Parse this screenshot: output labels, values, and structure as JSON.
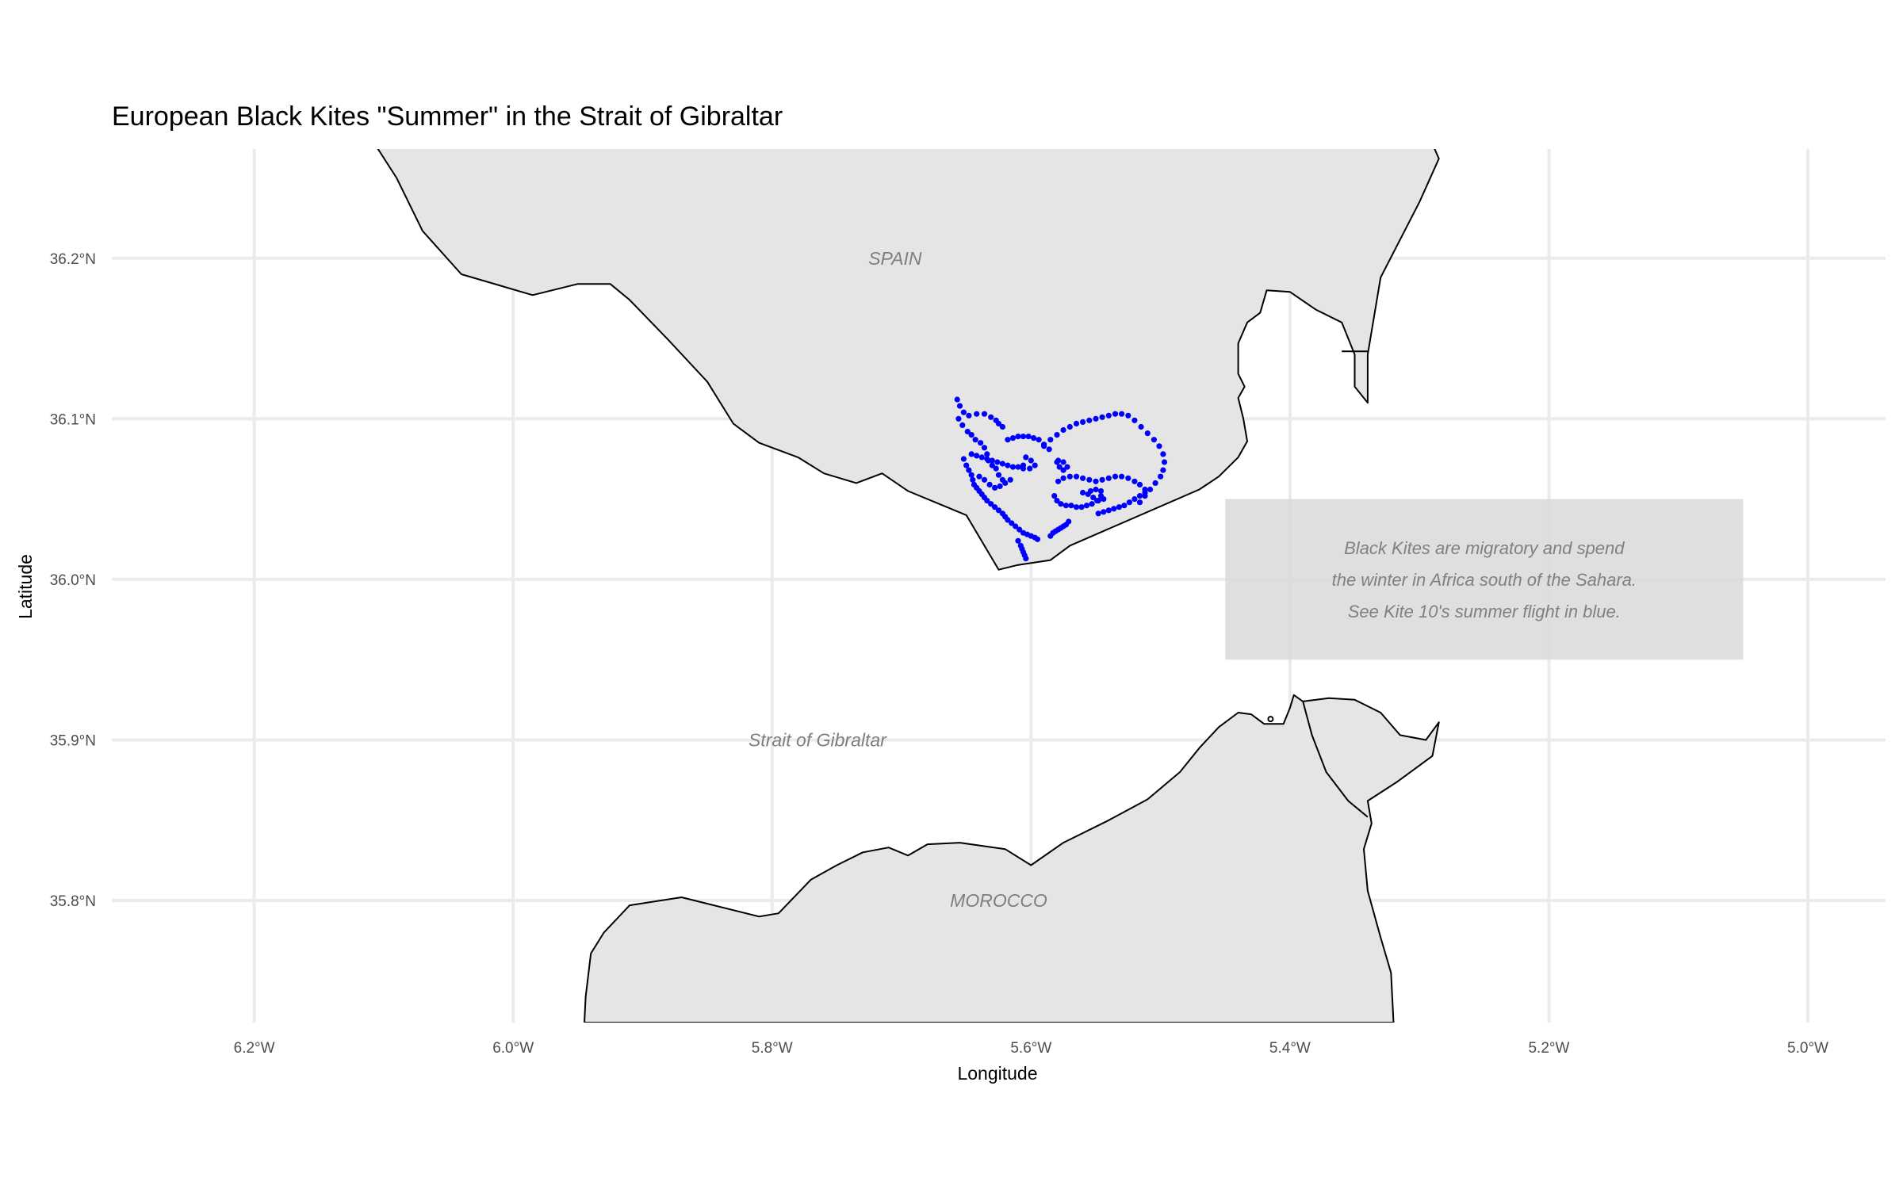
{
  "chart_data": {
    "type": "scatter",
    "title": "European Black Kites \"Summer\" in the Strait of Gibraltar",
    "xlabel": "Longitude",
    "ylabel": "Latitude",
    "xlim": [
      -6.31,
      -4.94
    ],
    "ylim": [
      35.724,
      36.268
    ],
    "grid": true,
    "x_ticks": [
      {
        "value": -6.2,
        "label": "6.2°W"
      },
      {
        "value": -6.0,
        "label": "6.0°W"
      },
      {
        "value": -5.8,
        "label": "5.8°W"
      },
      {
        "value": -5.6,
        "label": "5.6°W"
      },
      {
        "value": -5.4,
        "label": "5.4°W"
      },
      {
        "value": -5.2,
        "label": "5.2°W"
      },
      {
        "value": -5.0,
        "label": "5.0°W"
      }
    ],
    "y_ticks": [
      {
        "value": 36.2,
        "label": "36.2°N"
      },
      {
        "value": 36.1,
        "label": "36.1°N"
      },
      {
        "value": 36.0,
        "label": "36.0°N"
      },
      {
        "value": 35.9,
        "label": "35.9°N"
      },
      {
        "value": 35.8,
        "label": "35.8°N"
      }
    ],
    "place_labels": [
      {
        "text": "SPAIN",
        "lon": -5.705,
        "lat": 36.2
      },
      {
        "text": "Strait of Gibraltar",
        "lon": -5.765,
        "lat": 35.9
      },
      {
        "text": "MOROCCO",
        "lon": -5.625,
        "lat": 35.8
      }
    ],
    "annotation": {
      "lines": [
        "Black Kites are migratory and spend",
        "the winter in Africa south of the Sahara.",
        "See Kite 10's summer flight in blue."
      ],
      "box_lon": [
        -5.45,
        -5.05
      ],
      "box_lat": [
        35.95,
        36.05
      ],
      "fill": "#d9d9d9"
    },
    "land_color": "#e5e5e5",
    "track_color": "#0000ff",
    "land": [
      {
        "name": "Spain",
        "coords": [
          [
            -6.11,
            36.275
          ],
          [
            -6.09,
            36.25
          ],
          [
            -6.07,
            36.217
          ],
          [
            -6.04,
            36.19
          ],
          [
            -5.985,
            36.177
          ],
          [
            -5.95,
            36.184
          ],
          [
            -5.925,
            36.184
          ],
          [
            -5.91,
            36.174
          ],
          [
            -5.88,
            36.149
          ],
          [
            -5.85,
            36.123
          ],
          [
            -5.83,
            36.097
          ],
          [
            -5.81,
            36.085
          ],
          [
            -5.78,
            36.076
          ],
          [
            -5.76,
            36.066
          ],
          [
            -5.735,
            36.06
          ],
          [
            -5.715,
            36.066
          ],
          [
            -5.695,
            36.055
          ],
          [
            -5.65,
            36.04
          ],
          [
            -5.625,
            36.006
          ],
          [
            -5.61,
            36.009
          ],
          [
            -5.585,
            36.012
          ],
          [
            -5.57,
            36.021
          ],
          [
            -5.47,
            36.056
          ],
          [
            -5.455,
            36.064
          ],
          [
            -5.44,
            36.076
          ],
          [
            -5.433,
            36.086
          ],
          [
            -5.436,
            36.1
          ],
          [
            -5.44,
            36.113
          ],
          [
            -5.435,
            36.12
          ],
          [
            -5.44,
            36.128
          ],
          [
            -5.44,
            36.147
          ],
          [
            -5.433,
            36.16
          ],
          [
            -5.423,
            36.166
          ],
          [
            -5.418,
            36.18
          ],
          [
            -5.4,
            36.179
          ],
          [
            -5.38,
            36.168
          ],
          [
            -5.36,
            36.16
          ],
          [
            -5.35,
            36.14
          ],
          [
            -5.35,
            36.12
          ],
          [
            -5.34,
            36.11
          ],
          [
            -5.34,
            36.14
          ],
          [
            -5.33,
            36.188
          ],
          [
            -5.3,
            36.235
          ],
          [
            -5.285,
            36.262
          ],
          [
            -5.292,
            36.275
          ]
        ]
      },
      {
        "name": "Morocco",
        "coords": [
          [
            -5.945,
            35.724
          ],
          [
            -5.944,
            35.74
          ],
          [
            -5.94,
            35.767
          ],
          [
            -5.93,
            35.78
          ],
          [
            -5.91,
            35.797
          ],
          [
            -5.87,
            35.802
          ],
          [
            -5.81,
            35.79
          ],
          [
            -5.795,
            35.792
          ],
          [
            -5.77,
            35.813
          ],
          [
            -5.75,
            35.822
          ],
          [
            -5.73,
            35.83
          ],
          [
            -5.71,
            35.833
          ],
          [
            -5.695,
            35.828
          ],
          [
            -5.68,
            35.835
          ],
          [
            -5.655,
            35.836
          ],
          [
            -5.62,
            35.832
          ],
          [
            -5.6,
            35.822
          ],
          [
            -5.575,
            35.836
          ],
          [
            -5.54,
            35.85
          ],
          [
            -5.51,
            35.863
          ],
          [
            -5.485,
            35.88
          ],
          [
            -5.47,
            35.895
          ],
          [
            -5.455,
            35.908
          ],
          [
            -5.44,
            35.917
          ],
          [
            -5.43,
            35.916
          ],
          [
            -5.42,
            35.91
          ],
          [
            -5.405,
            35.91
          ],
          [
            -5.4,
            35.92
          ],
          [
            -5.397,
            35.928
          ],
          [
            -5.39,
            35.924
          ],
          [
            -5.37,
            35.926
          ],
          [
            -5.35,
            35.925
          ],
          [
            -5.33,
            35.917
          ],
          [
            -5.315,
            35.903
          ],
          [
            -5.295,
            35.9
          ],
          [
            -5.285,
            35.911
          ],
          [
            -5.29,
            35.89
          ],
          [
            -5.317,
            35.874
          ],
          [
            -5.34,
            35.862
          ],
          [
            -5.337,
            35.848
          ],
          [
            -5.343,
            35.832
          ],
          [
            -5.34,
            35.806
          ],
          [
            -5.33,
            35.777
          ],
          [
            -5.322,
            35.755
          ],
          [
            -5.32,
            35.724
          ]
        ]
      }
    ],
    "borders": [
      {
        "coords": [
          [
            -5.36,
            36.142
          ],
          [
            -5.34,
            36.142
          ]
        ]
      },
      {
        "coords": [
          [
            -5.39,
            35.924
          ],
          [
            -5.383,
            35.903
          ],
          [
            -5.372,
            35.88
          ],
          [
            -5.355,
            35.862
          ],
          [
            -5.34,
            35.852
          ]
        ]
      }
    ],
    "islet": {
      "lon": -5.415,
      "lat": 35.913
    },
    "series": [
      {
        "x": [
          -5.657,
          -5.655,
          -5.652,
          -5.648,
          -5.642,
          -5.636,
          -5.631,
          -5.627,
          -5.625,
          -5.622
        ],
        "y": [
          36.112,
          36.108,
          36.104,
          36.102,
          36.103,
          36.103,
          36.101,
          36.099,
          36.097,
          36.095
        ]
      },
      {
        "x": [
          -5.656,
          -5.653,
          -5.649,
          -5.646,
          -5.643,
          -5.639,
          -5.636,
          -5.634,
          -5.633,
          -5.63,
          -5.627,
          -5.625,
          -5.622
        ],
        "y": [
          36.1,
          36.096,
          36.092,
          36.09,
          36.087,
          36.085,
          36.082,
          36.078,
          36.074,
          36.071,
          36.069,
          36.065,
          36.062
        ]
      },
      {
        "x": [
          -5.652,
          -5.65,
          -5.648,
          -5.646,
          -5.645,
          -5.644,
          -5.642,
          -5.64,
          -5.638,
          -5.636,
          -5.634,
          -5.631,
          -5.628,
          -5.625,
          -5.622,
          -5.62,
          -5.618,
          -5.615,
          -5.612,
          -5.609,
          -5.606,
          -5.603,
          -5.6,
          -5.597,
          -5.595
        ],
        "y": [
          36.075,
          36.071,
          36.068,
          36.065,
          36.062,
          36.059,
          36.057,
          36.055,
          36.053,
          36.051,
          36.049,
          36.047,
          36.045,
          36.043,
          36.041,
          36.039,
          36.037,
          36.035,
          36.033,
          36.031,
          36.029,
          36.028,
          36.027,
          36.026,
          36.025
        ]
      },
      {
        "x": [
          -5.61,
          -5.608,
          -5.607,
          -5.606,
          -5.605,
          -5.604
        ],
        "y": [
          36.024,
          36.021,
          36.019,
          36.017,
          36.015,
          36.013
        ]
      },
      {
        "x": [
          -5.585,
          -5.583,
          -5.581,
          -5.579,
          -5.577,
          -5.575,
          -5.573,
          -5.571
        ],
        "y": [
          36.027,
          36.029,
          36.03,
          36.031,
          36.032,
          36.033,
          36.034,
          36.036
        ]
      },
      {
        "x": [
          -5.646,
          -5.642,
          -5.638,
          -5.634,
          -5.63,
          -5.626,
          -5.622,
          -5.618,
          -5.614,
          -5.61,
          -5.606
        ],
        "y": [
          36.078,
          36.077,
          36.076,
          36.075,
          36.074,
          36.073,
          36.072,
          36.071,
          36.07,
          36.07,
          36.069
        ]
      },
      {
        "x": [
          -5.618,
          -5.614,
          -5.61,
          -5.606,
          -5.602,
          -5.598,
          -5.594,
          -5.59,
          -5.586
        ],
        "y": [
          36.087,
          36.088,
          36.089,
          36.089,
          36.089,
          36.088,
          36.087,
          36.084,
          36.081
        ]
      },
      {
        "x": [
          -5.59,
          -5.585,
          -5.58,
          -5.575,
          -5.57,
          -5.565,
          -5.56,
          -5.555,
          -5.55,
          -5.545,
          -5.54,
          -5.535,
          -5.53,
          -5.525,
          -5.52,
          -5.515,
          -5.51,
          -5.505,
          -5.501,
          -5.498,
          -5.497,
          -5.498,
          -5.5,
          -5.504,
          -5.508,
          -5.512,
          -5.516
        ],
        "y": [
          36.083,
          36.087,
          36.09,
          36.093,
          36.095,
          36.097,
          36.098,
          36.099,
          36.1,
          36.101,
          36.102,
          36.103,
          36.103,
          36.102,
          36.099,
          36.095,
          36.091,
          36.087,
          36.083,
          36.078,
          36.073,
          36.068,
          36.064,
          36.06,
          36.056,
          36.052,
          36.048
        ]
      },
      {
        "x": [
          -5.512,
          -5.516,
          -5.52,
          -5.525,
          -5.53,
          -5.535,
          -5.54,
          -5.545,
          -5.55,
          -5.555,
          -5.56,
          -5.565,
          -5.57,
          -5.575,
          -5.579
        ],
        "y": [
          36.056,
          36.059,
          36.061,
          36.063,
          36.064,
          36.064,
          36.063,
          36.062,
          36.061,
          36.062,
          36.063,
          36.064,
          36.064,
          36.063,
          36.061
        ]
      },
      {
        "x": [
          -5.582,
          -5.58,
          -5.577,
          -5.573,
          -5.569,
          -5.565,
          -5.561,
          -5.557,
          -5.553,
          -5.549,
          -5.546
        ],
        "y": [
          36.052,
          36.049,
          36.047,
          36.046,
          36.046,
          36.045,
          36.045,
          36.046,
          36.047,
          36.049,
          36.052
        ]
      },
      {
        "x": [
          -5.548,
          -5.544,
          -5.54,
          -5.536,
          -5.532,
          -5.528,
          -5.524,
          -5.52,
          -5.516,
          -5.512
        ],
        "y": [
          36.041,
          36.042,
          36.043,
          36.044,
          36.045,
          36.046,
          36.048,
          36.05,
          36.052,
          36.054
        ]
      },
      {
        "x": [
          -5.56,
          -5.556,
          -5.552,
          -5.548,
          -5.544,
          -5.546,
          -5.55,
          -5.554
        ],
        "y": [
          36.054,
          36.053,
          36.051,
          36.049,
          36.05,
          36.055,
          36.056,
          36.055
        ]
      },
      {
        "x": [
          -5.58,
          -5.578,
          -5.575,
          -5.572,
          -5.575,
          -5.579
        ],
        "y": [
          36.073,
          36.07,
          36.068,
          36.07,
          36.073,
          36.074
        ]
      },
      {
        "x": [
          -5.604,
          -5.6,
          -5.597,
          -5.601,
          -5.606
        ],
        "y": [
          36.076,
          36.074,
          36.071,
          36.069,
          36.071
        ]
      },
      {
        "x": [
          -5.64,
          -5.636,
          -5.632,
          -5.628,
          -5.624,
          -5.62,
          -5.616
        ],
        "y": [
          36.064,
          36.062,
          36.059,
          36.057,
          36.058,
          36.06,
          36.062
        ]
      }
    ]
  }
}
